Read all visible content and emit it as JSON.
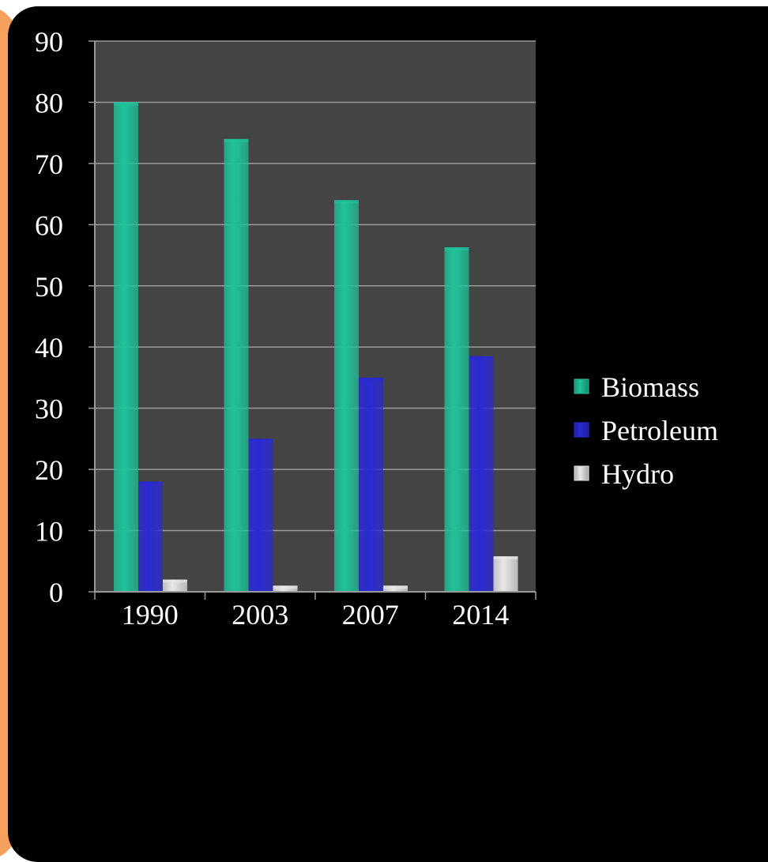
{
  "chart_data": {
    "type": "bar",
    "categories": [
      "1990",
      "2003",
      "2007",
      "2014"
    ],
    "series": [
      {
        "name": "Biomass",
        "values": [
          80,
          74,
          64,
          56.3
        ],
        "color": "#1ec39a"
      },
      {
        "name": "Petroleum",
        "values": [
          18,
          25,
          35,
          38.5
        ],
        "color": "#2a2ad6"
      },
      {
        "name": "Hydro",
        "values": [
          2,
          1,
          1,
          5.8
        ],
        "color": "#e8e8e8"
      }
    ],
    "title": "",
    "xlabel": "",
    "ylabel": "",
    "ylim": [
      0,
      90
    ],
    "yticks": [
      "0",
      "10",
      "20",
      "30",
      "40",
      "50",
      "60",
      "70",
      "80",
      "90"
    ],
    "grid": true,
    "legend_position": "right",
    "plot_background": "#444444",
    "page_background": "#000000",
    "accent_color": "#f7a15e"
  }
}
